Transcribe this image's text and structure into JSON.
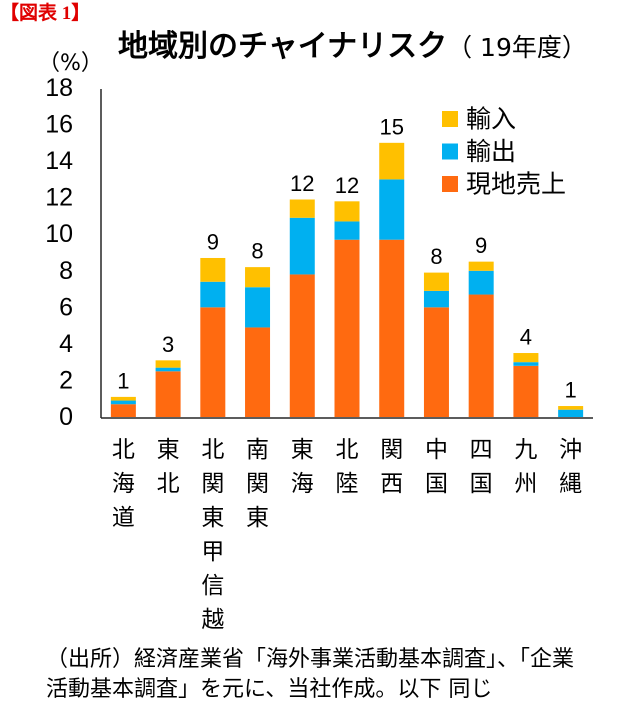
{
  "figure_label": "【図表 1】",
  "source_lines": [
    "（出所）経済産業省「海外事業活動基本調査」、「企業",
    "活動基本調査」を元に、当社作成。以下 同じ"
  ],
  "chart_data": {
    "type": "bar",
    "stacked": true,
    "title": "地域別のチャイナリスク",
    "title_period": "（ 19年度）",
    "ylabel": "（%）",
    "ylim": [
      0,
      18
    ],
    "yticks": [
      0,
      2,
      4,
      6,
      8,
      10,
      12,
      14,
      16,
      18
    ],
    "grid": false,
    "legend": "top-right",
    "categories": [
      "北海道",
      "東北",
      "北関東甲信越",
      "南関東",
      "東海",
      "北陸",
      "関西",
      "中国",
      "四国",
      "九州",
      "沖縄"
    ],
    "series": [
      {
        "name": "現地売上",
        "color": "#FF6A10",
        "values": [
          0.7,
          2.5,
          6.0,
          4.9,
          7.8,
          9.7,
          9.7,
          6.0,
          6.7,
          2.8,
          0.0
        ]
      },
      {
        "name": "輸出",
        "color": "#00B0F0",
        "values": [
          0.2,
          0.2,
          1.4,
          2.2,
          3.1,
          1.0,
          3.3,
          0.9,
          1.3,
          0.2,
          0.4
        ]
      },
      {
        "name": "輸入",
        "color": "#FFC000",
        "values": [
          0.2,
          0.4,
          1.3,
          1.1,
          1.0,
          1.1,
          2.0,
          1.0,
          0.5,
          0.5,
          0.2
        ]
      }
    ],
    "data_labels": [
      "1",
      "3",
      "9",
      "8",
      "12",
      "12",
      "15",
      "8",
      "9",
      "4",
      "1"
    ]
  }
}
